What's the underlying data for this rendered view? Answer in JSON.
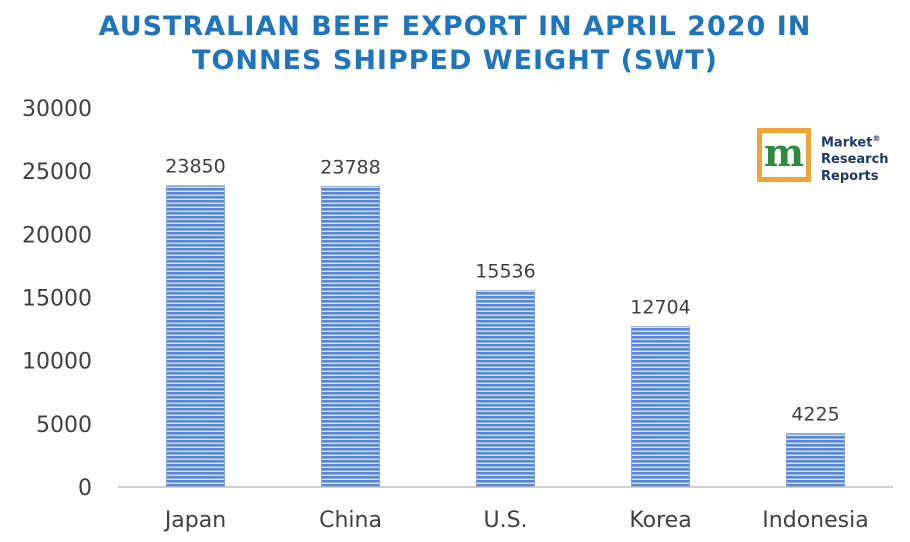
{
  "chart_data": {
    "type": "bar",
    "title_lines": [
      "AUSTRALIAN BEEF EXPORT IN APRIL 2020 IN",
      "TONNES SHIPPED WEIGHT (SWT)"
    ],
    "categories": [
      "Japan",
      "China",
      "U.S.",
      "Korea",
      "Indonesia"
    ],
    "values": [
      23850,
      23788,
      15536,
      12704,
      4225
    ],
    "data_labels": [
      "23850",
      "23788",
      "15536",
      "12704",
      "4225"
    ],
    "ylim": [
      0,
      30000
    ],
    "yticks": [
      "0",
      "5000",
      "10000",
      "15000",
      "20000",
      "25000",
      "30000"
    ],
    "grid": false,
    "bar_color": "#4f78c7"
  },
  "logo": {
    "mark": "m",
    "lines": [
      "Market",
      "Research",
      "Reports"
    ],
    "reg": "®",
    "border_color": "#f0a43a",
    "mark_color": "#2d8a3e"
  }
}
